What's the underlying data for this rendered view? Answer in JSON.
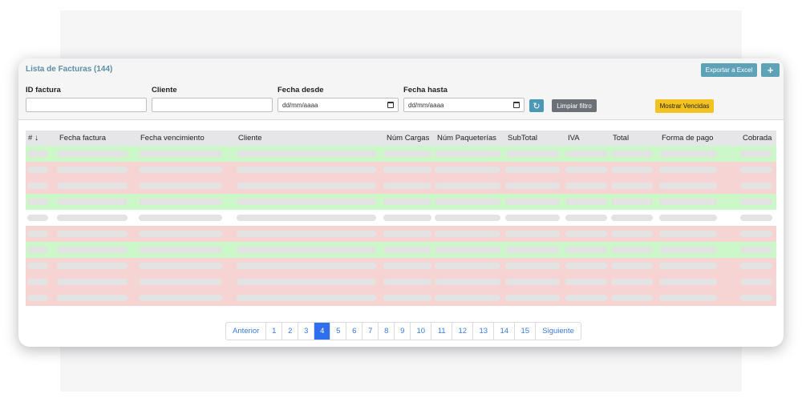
{
  "header": {
    "title": "Lista de Facturas (144)",
    "export_label": "Exportar a Excel",
    "add_label": "+"
  },
  "filters": {
    "id_label": "ID factura",
    "id_value": "",
    "client_label": "Cliente",
    "client_value": "",
    "from_label": "Fecha desde",
    "from_value": "dd/mm/aaaa",
    "to_label": "Fecha hasta",
    "to_value": "dd/mm/aaaa",
    "refresh_icon": "refresh-icon",
    "clear_label": "Limpiar filtro",
    "expired_label": "Mostrar Vencidas"
  },
  "table": {
    "columns": [
      "#",
      "Fecha factura",
      "Fecha vencimiento",
      "Cliente",
      "Núm Cargas",
      "Núm Paqueterías",
      "SubTotal",
      "IVA",
      "Total",
      "Forma de pago",
      "Cobrada"
    ],
    "sort_icon": "arrow-down-icon",
    "row_states": [
      "green",
      "red",
      "red",
      "green",
      "white",
      "red",
      "green",
      "red",
      "red",
      "red"
    ],
    "colors": {
      "paid": "#ccf7c9",
      "overdue": "#f7d4d4",
      "neutral": "#ffffff"
    }
  },
  "pagination": {
    "prev_label": "Anterior",
    "pages": [
      "1",
      "2",
      "3",
      "4",
      "5",
      "6",
      "7",
      "8",
      "9",
      "10",
      "11",
      "12",
      "13",
      "14",
      "15"
    ],
    "current": "4",
    "next_label": "Siguiente"
  },
  "colors": {
    "title": "#5c8ea5",
    "export_button": "#5ea2b8",
    "expired_button": "#f4c21f",
    "active_page": "#2f6fed"
  }
}
